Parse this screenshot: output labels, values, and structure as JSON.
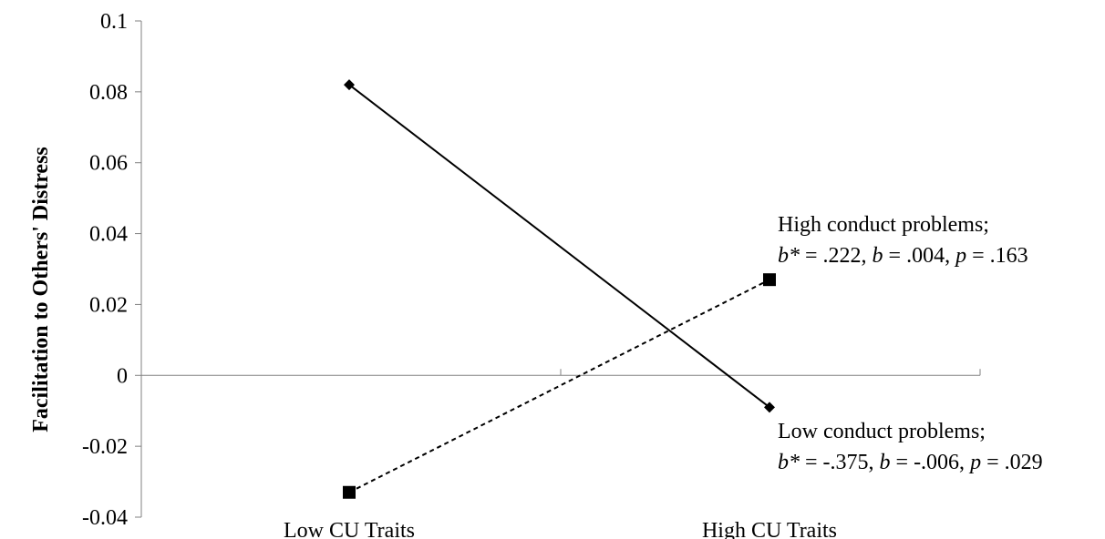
{
  "chart_data": {
    "type": "line",
    "categories": [
      "Low CU Traits",
      "High CU Traits"
    ],
    "ylabel": "Facilitation to Others' Distress",
    "xlabel": "",
    "ylim": [
      -0.04,
      0.1
    ],
    "yticks": [
      "0.1",
      "0.08",
      "0.06",
      "0.04",
      "0.02",
      "0",
      "-0.02",
      "-0.04"
    ],
    "grid": false,
    "series": [
      {
        "name": "Low conduct problems",
        "values": [
          0.082,
          -0.009
        ],
        "color": "#000000",
        "line_style": "solid",
        "marker": "diamond",
        "stats": {
          "b_star_label": "b*",
          "b_star_value": " = -.375, ",
          "b_label": "b",
          "b_value": " = -.006, ",
          "p_label": "p",
          "p_value": " = .029"
        }
      },
      {
        "name": "High conduct problems",
        "values": [
          -0.033,
          0.027
        ],
        "color": "#000000",
        "line_style": "dashed",
        "marker": "square",
        "stats": {
          "b_star_label": "b*",
          "b_star_value": " = .222, ",
          "b_label": "b",
          "b_value": " = .004, ",
          "p_label": "p",
          "p_value": " = .163"
        }
      }
    ],
    "annotation_suffix": ";"
  }
}
